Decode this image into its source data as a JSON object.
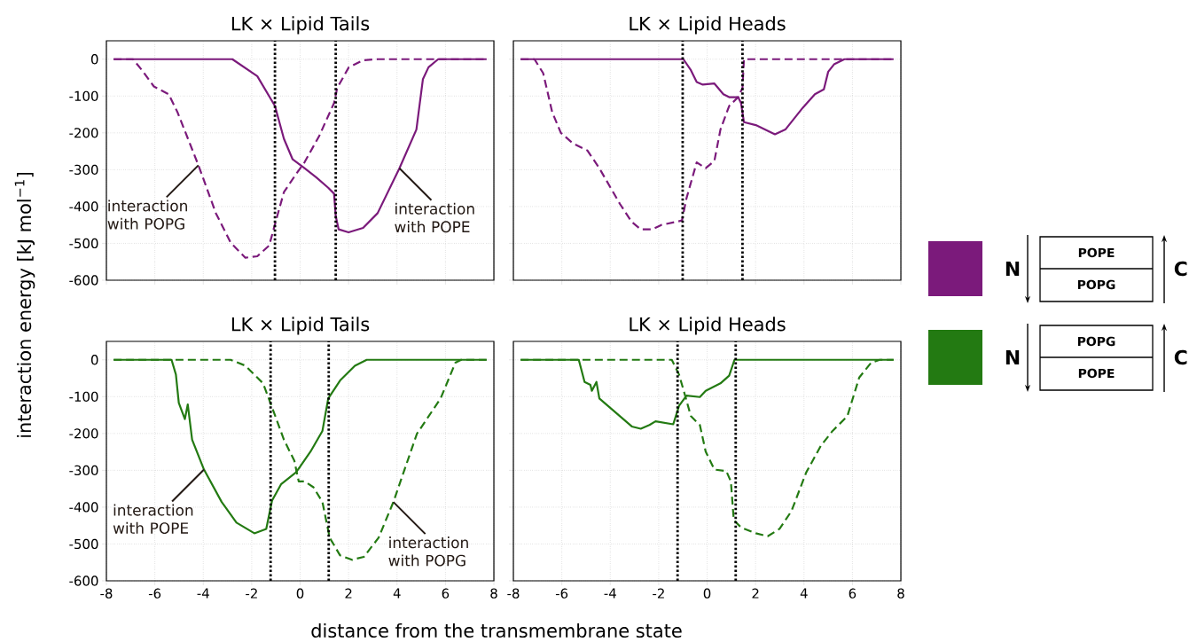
{
  "chart_data": [
    {
      "type": "line",
      "title": "LK × Lipid Tails",
      "ylabel": "interaction energy [kJ mol$^{−1}$]",
      "xlim": [
        -8,
        8
      ],
      "ylim": [
        -600,
        50
      ],
      "xticks": [
        -8,
        -6,
        -4,
        -2,
        0,
        2,
        4,
        6,
        8
      ],
      "yticks": [
        -600,
        -500,
        -400,
        -300,
        -200,
        -100,
        0
      ],
      "grid": true,
      "tick_labels": "y",
      "marker": "none",
      "series": [
        {
          "color": "#7b1a7b",
          "line_style": "solid",
          "x": [
            -7.7,
            -2.8,
            -1.77,
            -1.04,
            -0.67,
            -0.31,
            0.18,
            0.67,
            1.16,
            1.4,
            1.47,
            1.59,
            2.0,
            2.6,
            3.2,
            4.1,
            4.8,
            5.07,
            5.3,
            5.7,
            7.7
          ],
          "values": [
            0,
            0,
            -46,
            -127,
            -216,
            -272,
            -296,
            -321,
            -349,
            -365,
            -426,
            -462,
            -470,
            -458,
            -418,
            -296,
            -191,
            -54,
            -22,
            0,
            0
          ]
        },
        {
          "color": "#7b1a7b",
          "line_style": "dashed",
          "x": [
            -7.7,
            -6.9,
            -6.53,
            -6.04,
            -5.43,
            -5.07,
            -4.2,
            -3.48,
            -2.87,
            -2.26,
            -1.77,
            -1.28,
            -0.98,
            -0.67,
            -0.18,
            0.18,
            0.79,
            1.4,
            1.53,
            2.01,
            2.6,
            3.2,
            7.7
          ],
          "values": [
            0,
            0,
            -30,
            -74,
            -95,
            -143,
            -288,
            -418,
            -498,
            -539,
            -535,
            -506,
            -434,
            -361,
            -313,
            -280,
            -208,
            -119,
            -78,
            -22,
            -3,
            0,
            0
          ]
        }
      ],
      "ref_lines": [
        {
          "axis": "x",
          "value": -1.04,
          "color": "#000000",
          "line_style": "dotted"
        },
        {
          "axis": "x",
          "value": 1.47,
          "color": "#000000",
          "line_style": "dotted"
        }
      ],
      "annotations": [
        {
          "text": "interaction with POPG",
          "x": -4.2,
          "y": -288
        },
        {
          "text": "interaction with POPE",
          "x": 4.1,
          "y": -296
        }
      ]
    },
    {
      "type": "line",
      "title": "LK × Lipid Heads",
      "xlim": [
        -8,
        8
      ],
      "ylim": [
        -600,
        50
      ],
      "xticks": [
        -8,
        -6,
        -4,
        -2,
        0,
        2,
        4,
        6,
        8
      ],
      "yticks": [
        -600,
        -500,
        -400,
        -300,
        -200,
        -100,
        0
      ],
      "grid": true,
      "tick_labels": false,
      "marker": "none",
      "series": [
        {
          "color": "#7b1a7b",
          "line_style": "solid",
          "x": [
            -7.7,
            -0.98,
            -0.67,
            -0.43,
            -0.18,
            0.3,
            0.67,
            0.91,
            1.28,
            1.4,
            1.52,
            2.01,
            2.8,
            3.23,
            3.96,
            4.45,
            4.82,
            5.0,
            5.24,
            5.67,
            7.7
          ],
          "values": [
            0,
            0,
            -30,
            -62,
            -69,
            -66,
            -95,
            -103,
            -103,
            -119,
            -171,
            -179,
            -204,
            -191,
            -131,
            -95,
            -82,
            -34,
            -14,
            0,
            0
          ]
        },
        {
          "color": "#7b1a7b",
          "line_style": "dashed",
          "x": [
            -7.7,
            -7.13,
            -6.77,
            -6.4,
            -6.04,
            -5.55,
            -4.94,
            -4.45,
            -3.6,
            -3.11,
            -2.74,
            -2.26,
            -1.89,
            -1.04,
            -0.85,
            -0.43,
            -0.06,
            0.3,
            0.55,
            0.91,
            1.28,
            1.46,
            1.52,
            7.7
          ],
          "values": [
            0,
            0,
            -38,
            -143,
            -200,
            -228,
            -248,
            -296,
            -393,
            -442,
            -462,
            -462,
            -450,
            -438,
            -377,
            -280,
            -296,
            -276,
            -191,
            -127,
            -103,
            -78,
            0,
            0
          ]
        }
      ],
      "ref_lines": [
        {
          "axis": "x",
          "value": -1.01,
          "color": "#000000",
          "line_style": "dotted"
        },
        {
          "axis": "x",
          "value": 1.46,
          "color": "#000000",
          "line_style": "dotted"
        }
      ]
    },
    {
      "type": "line",
      "title": "LK × Lipid Tails",
      "xlabel": "distance from the transmembrane state",
      "xlim": [
        -8,
        8
      ],
      "ylim": [
        -600,
        50
      ],
      "xticks": [
        -8,
        -6,
        -4,
        -2,
        0,
        2,
        4,
        6,
        8
      ],
      "yticks": [
        -600,
        -500,
        -400,
        -300,
        -200,
        -100,
        0
      ],
      "grid": true,
      "marker": "none",
      "series": [
        {
          "color": "#237a12",
          "line_style": "solid",
          "x": [
            -7.7,
            -5.31,
            -5.13,
            -5.01,
            -4.76,
            -4.64,
            -4.46,
            -3.97,
            -3.24,
            -2.63,
            -1.89,
            -1.4,
            -1.16,
            -0.79,
            -0.18,
            0,
            0.43,
            0.92,
            1.16,
            1.65,
            2.26,
            2.75,
            7.7
          ],
          "values": [
            0,
            0,
            -40,
            -117,
            -161,
            -121,
            -217,
            -298,
            -386,
            -442,
            -471,
            -459,
            -382,
            -338,
            -306,
            -290,
            -249,
            -193,
            -105,
            -56,
            -16,
            0,
            0
          ]
        },
        {
          "color": "#237a12",
          "line_style": "dashed",
          "x": [
            -7.7,
            -2.87,
            -2.26,
            -1.53,
            -1.16,
            -0.67,
            -0.24,
            -0.06,
            0.18,
            0.55,
            0.92,
            1.22,
            1.65,
            2.14,
            2.63,
            3.24,
            3.85,
            4.82,
            5.8,
            6.41,
            6.65,
            7.7
          ],
          "values": [
            0,
            0,
            -16,
            -64,
            -129,
            -217,
            -274,
            -330,
            -330,
            -346,
            -386,
            -483,
            -531,
            -543,
            -535,
            -483,
            -386,
            -201,
            -105,
            -8,
            0,
            0
          ]
        }
      ],
      "ref_lines": [
        {
          "axis": "x",
          "value": -1.22,
          "color": "#000000",
          "line_style": "dotted"
        },
        {
          "axis": "x",
          "value": 1.18,
          "color": "#000000",
          "line_style": "dotted"
        }
      ],
      "annotations": [
        {
          "text": "interaction with POPE",
          "x": -3.97,
          "y": -298
        },
        {
          "text": "interaction with POPG",
          "x": 3.85,
          "y": -386
        }
      ]
    },
    {
      "type": "line",
      "title": "LK × Lipid Heads",
      "xlim": [
        -8,
        8
      ],
      "ylim": [
        -600,
        50
      ],
      "xticks": [
        -8,
        -6,
        -4,
        -2,
        0,
        2,
        4,
        6,
        8
      ],
      "yticks": [
        -600,
        -500,
        -400,
        -300,
        -200,
        -100,
        0
      ],
      "grid": true,
      "tick_labels": "x",
      "marker": "none",
      "series": [
        {
          "color": "#237a12",
          "line_style": "solid",
          "x": [
            -7.7,
            -5.3,
            -5.06,
            -4.82,
            -4.76,
            -4.57,
            -4.45,
            -3.6,
            -3.11,
            -2.74,
            -2.38,
            -2.13,
            -1.4,
            -1.16,
            -0.85,
            -0.3,
            -0.06,
            0.55,
            0.91,
            1.13,
            7.7
          ],
          "values": [
            0,
            0,
            -60,
            -68,
            -84,
            -60,
            -105,
            -153,
            -181,
            -187,
            -177,
            -167,
            -175,
            -125,
            -97,
            -101,
            -84,
            -64,
            -43,
            0,
            0
          ]
        },
        {
          "color": "#237a12",
          "line_style": "dashed",
          "x": [
            -7.7,
            -1.46,
            -1.16,
            -0.91,
            -0.67,
            -0.3,
            -0.06,
            0.3,
            0.79,
            0.98,
            1.1,
            1.4,
            2.01,
            2.5,
            2.99,
            3.48,
            4.09,
            4.7,
            5.18,
            5.79,
            6.28,
            6.77,
            7.13,
            7.7
          ],
          "values": [
            0,
            0,
            -40,
            -97,
            -153,
            -177,
            -249,
            -298,
            -302,
            -330,
            -435,
            -455,
            -471,
            -479,
            -459,
            -411,
            -306,
            -233,
            -193,
            -153,
            -48,
            -8,
            0,
            0
          ]
        }
      ],
      "ref_lines": [
        {
          "axis": "x",
          "value": -1.22,
          "color": "#000000",
          "line_style": "dotted"
        },
        {
          "axis": "x",
          "value": 1.18,
          "color": "#000000",
          "line_style": "dotted"
        }
      ]
    },
    {
      "type": "other",
      "colors": [
        "#7b1a7b",
        "#237a12"
      ],
      "annotations": [
        "N",
        "POPE",
        "POPG",
        "C",
        "N",
        "POPG",
        "POPE",
        "C"
      ]
    }
  ]
}
